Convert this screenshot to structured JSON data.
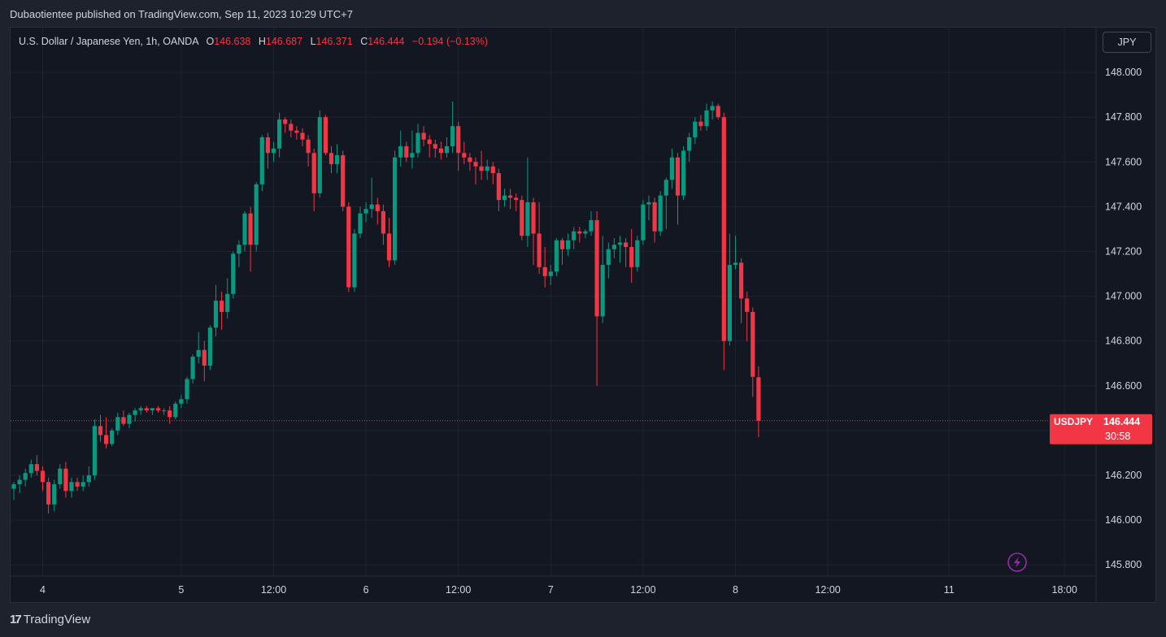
{
  "publication": {
    "text": "Dubaotientee published on TradingView.com, Sep 11, 2023 10:29 UTC+7"
  },
  "legend": {
    "symbol_line": "U.S. Dollar / Japanese Yen, 1h, OANDA",
    "open_label": "O",
    "open": "146.638",
    "high_label": "H",
    "high": "146.687",
    "low_label": "L",
    "low": "146.371",
    "close_label": "C",
    "close": "146.444",
    "change": "−0.194 (−0.13%)"
  },
  "currency_button": {
    "label": "JPY"
  },
  "price_tag": {
    "symbol": "USDJPY",
    "price": "146.444",
    "countdown": "30:58"
  },
  "footer": {
    "logo_text": "TradingView",
    "logo_mark": "17"
  },
  "icons": {
    "flash": "lightning-icon"
  },
  "colors": {
    "up": "#089981",
    "down": "#f23645",
    "background": "#131722",
    "grid": "#1e222d",
    "text": "#d1d4dc",
    "price_line": "#f23645",
    "flash": "#9c27b0"
  },
  "chart_data": {
    "type": "candlestick",
    "interval": "1h",
    "ylim": [
      145.75,
      148.2
    ],
    "y_ticks": [
      "145.800",
      "146.000",
      "146.200",
      "146.400",
      "146.600",
      "146.800",
      "147.000",
      "147.200",
      "147.400",
      "147.600",
      "147.800",
      "148.000"
    ],
    "x_ticks": [
      {
        "label": "4",
        "index": 5
      },
      {
        "label": "5",
        "index": 29
      },
      {
        "label": "12:00",
        "index": 45
      },
      {
        "label": "6",
        "index": 61
      },
      {
        "label": "12:00",
        "index": 77
      },
      {
        "label": "7",
        "index": 93
      },
      {
        "label": "12:00",
        "index": 109
      },
      {
        "label": "8",
        "index": 125
      },
      {
        "label": "12:00",
        "index": 141
      },
      {
        "label": "11",
        "index": 162
      },
      {
        "label": "18:00",
        "index": 182
      }
    ],
    "grid": true,
    "last_price": 146.444,
    "candles": [
      [
        146.14,
        146.17,
        146.09,
        146.16
      ],
      [
        146.16,
        146.2,
        146.12,
        146.18
      ],
      [
        146.18,
        146.23,
        146.15,
        146.21
      ],
      [
        146.21,
        146.27,
        146.19,
        146.25
      ],
      [
        146.25,
        146.29,
        146.2,
        146.22
      ],
      [
        146.22,
        146.24,
        146.13,
        146.17
      ],
      [
        146.17,
        146.19,
        146.03,
        146.07
      ],
      [
        146.07,
        146.18,
        146.04,
        146.16
      ],
      [
        146.16,
        146.25,
        146.14,
        146.23
      ],
      [
        146.23,
        146.26,
        146.1,
        146.13
      ],
      [
        146.13,
        146.19,
        146.1,
        146.17
      ],
      [
        146.17,
        146.19,
        146.13,
        146.15
      ],
      [
        146.15,
        146.2,
        146.13,
        146.17
      ],
      [
        146.17,
        146.24,
        146.15,
        146.2
      ],
      [
        146.2,
        146.45,
        146.18,
        146.42
      ],
      [
        146.42,
        146.47,
        146.35,
        146.38
      ],
      [
        146.38,
        146.46,
        146.32,
        146.34
      ],
      [
        146.34,
        146.41,
        146.33,
        146.4
      ],
      [
        146.4,
        146.48,
        146.38,
        146.46
      ],
      [
        146.46,
        146.49,
        146.42,
        146.43
      ],
      [
        146.43,
        146.48,
        146.41,
        146.47
      ],
      [
        146.47,
        146.5,
        146.44,
        146.49
      ],
      [
        146.49,
        146.51,
        146.47,
        146.5
      ],
      [
        146.5,
        146.51,
        146.48,
        146.49
      ],
      [
        146.49,
        146.5,
        146.47,
        146.5
      ],
      [
        146.5,
        146.51,
        146.48,
        146.49
      ],
      [
        146.49,
        146.5,
        146.47,
        146.49
      ],
      [
        146.49,
        146.51,
        146.43,
        146.46
      ],
      [
        146.46,
        146.53,
        146.45,
        146.52
      ],
      [
        146.52,
        146.56,
        146.5,
        146.54
      ],
      [
        146.54,
        146.64,
        146.52,
        146.63
      ],
      [
        146.63,
        146.74,
        146.61,
        146.73
      ],
      [
        146.73,
        146.84,
        146.7,
        146.76
      ],
      [
        146.76,
        146.8,
        146.62,
        146.69
      ],
      [
        146.69,
        146.87,
        146.67,
        146.86
      ],
      [
        146.86,
        147.05,
        146.82,
        146.98
      ],
      [
        146.98,
        147.02,
        146.85,
        146.93
      ],
      [
        146.93,
        147.08,
        146.9,
        147.01
      ],
      [
        147.01,
        147.2,
        146.99,
        147.19
      ],
      [
        147.19,
        147.25,
        147.13,
        147.23
      ],
      [
        147.23,
        147.38,
        147.2,
        147.37
      ],
      [
        147.37,
        147.4,
        147.11,
        147.23
      ],
      [
        147.23,
        147.51,
        147.2,
        147.5
      ],
      [
        147.5,
        147.72,
        147.47,
        147.71
      ],
      [
        147.71,
        147.73,
        147.57,
        147.64
      ],
      [
        147.64,
        147.69,
        147.6,
        147.66
      ],
      [
        147.66,
        147.82,
        147.62,
        147.79
      ],
      [
        147.79,
        147.8,
        147.73,
        147.77
      ],
      [
        147.77,
        147.79,
        147.71,
        147.74
      ],
      [
        147.74,
        147.76,
        147.7,
        147.73
      ],
      [
        147.73,
        147.75,
        147.67,
        147.7
      ],
      [
        147.7,
        147.72,
        147.58,
        147.64
      ],
      [
        147.64,
        147.66,
        147.38,
        147.46
      ],
      [
        147.46,
        147.83,
        147.44,
        147.8
      ],
      [
        147.8,
        147.81,
        147.63,
        147.64
      ],
      [
        147.64,
        147.67,
        147.55,
        147.59
      ],
      [
        147.59,
        147.68,
        147.55,
        147.63
      ],
      [
        147.63,
        147.65,
        147.38,
        147.4
      ],
      [
        147.4,
        147.42,
        147.02,
        147.04
      ],
      [
        147.04,
        147.3,
        147.02,
        147.28
      ],
      [
        147.28,
        147.4,
        147.26,
        147.37
      ],
      [
        147.37,
        147.42,
        147.33,
        147.39
      ],
      [
        147.39,
        147.53,
        147.35,
        147.41
      ],
      [
        147.41,
        147.44,
        147.32,
        147.38
      ],
      [
        147.38,
        147.41,
        147.23,
        147.28
      ],
      [
        147.28,
        147.35,
        147.13,
        147.16
      ],
      [
        147.16,
        147.65,
        147.14,
        147.62
      ],
      [
        147.62,
        147.74,
        147.58,
        147.67
      ],
      [
        147.67,
        147.69,
        147.6,
        147.62
      ],
      [
        147.62,
        147.74,
        147.57,
        147.64
      ],
      [
        147.64,
        147.77,
        147.62,
        147.73
      ],
      [
        147.73,
        147.76,
        147.67,
        147.7
      ],
      [
        147.7,
        147.72,
        147.62,
        147.68
      ],
      [
        147.68,
        147.7,
        147.62,
        147.66
      ],
      [
        147.66,
        147.69,
        147.61,
        147.64
      ],
      [
        147.64,
        147.71,
        147.62,
        147.67
      ],
      [
        147.67,
        147.87,
        147.64,
        147.76
      ],
      [
        147.76,
        147.78,
        147.56,
        147.64
      ],
      [
        147.64,
        147.69,
        147.59,
        147.62
      ],
      [
        147.62,
        147.64,
        147.56,
        147.6
      ],
      [
        147.6,
        147.62,
        147.5,
        147.58
      ],
      [
        147.58,
        147.65,
        147.52,
        147.56
      ],
      [
        147.56,
        147.61,
        147.52,
        147.58
      ],
      [
        147.58,
        147.6,
        147.5,
        147.55
      ],
      [
        147.55,
        147.57,
        147.38,
        147.43
      ],
      [
        147.43,
        147.48,
        147.4,
        147.45
      ],
      [
        147.45,
        147.48,
        147.39,
        147.44
      ],
      [
        147.44,
        147.46,
        147.38,
        147.43
      ],
      [
        147.43,
        147.45,
        147.25,
        147.27
      ],
      [
        147.27,
        147.62,
        147.22,
        147.42
      ],
      [
        147.42,
        147.44,
        147.14,
        147.28
      ],
      [
        147.28,
        147.42,
        147.1,
        147.13
      ],
      [
        147.13,
        147.22,
        147.04,
        147.09
      ],
      [
        147.09,
        147.14,
        147.05,
        147.11
      ],
      [
        147.11,
        147.26,
        147.09,
        147.25
      ],
      [
        147.25,
        147.26,
        147.14,
        147.21
      ],
      [
        147.21,
        147.28,
        147.18,
        147.25
      ],
      [
        147.25,
        147.31,
        147.21,
        147.29
      ],
      [
        147.29,
        147.31,
        147.24,
        147.28
      ],
      [
        147.28,
        147.3,
        147.26,
        147.29
      ],
      [
        147.29,
        147.38,
        147.27,
        147.34
      ],
      [
        147.34,
        147.38,
        146.6,
        146.91
      ],
      [
        146.91,
        147.27,
        146.88,
        147.14
      ],
      [
        147.14,
        147.24,
        147.08,
        147.21
      ],
      [
        147.21,
        147.26,
        147.17,
        147.23
      ],
      [
        147.23,
        147.27,
        147.15,
        147.24
      ],
      [
        147.24,
        147.26,
        147.13,
        147.22
      ],
      [
        147.22,
        147.3,
        147.06,
        147.13
      ],
      [
        147.13,
        147.27,
        147.11,
        147.25
      ],
      [
        147.25,
        147.43,
        147.23,
        147.41
      ],
      [
        147.41,
        147.45,
        147.34,
        147.42
      ],
      [
        147.42,
        147.44,
        147.24,
        147.29
      ],
      [
        147.29,
        147.47,
        147.27,
        147.45
      ],
      [
        147.45,
        147.53,
        147.3,
        147.52
      ],
      [
        147.52,
        147.66,
        147.48,
        147.62
      ],
      [
        147.62,
        147.64,
        147.32,
        147.45
      ],
      [
        147.45,
        147.67,
        147.43,
        147.65
      ],
      [
        147.65,
        147.73,
        147.6,
        147.71
      ],
      [
        147.71,
        147.8,
        147.68,
        147.78
      ],
      [
        147.78,
        147.81,
        147.74,
        147.76
      ],
      [
        147.76,
        147.86,
        147.74,
        147.83
      ],
      [
        147.83,
        147.87,
        147.79,
        147.85
      ],
      [
        147.85,
        147.86,
        147.79,
        147.8
      ],
      [
        147.8,
        147.82,
        146.67,
        146.8
      ],
      [
        146.8,
        147.28,
        146.78,
        147.14
      ],
      [
        147.14,
        147.27,
        147.12,
        147.15
      ],
      [
        147.15,
        147.17,
        146.88,
        146.99
      ],
      [
        146.99,
        147.02,
        146.8,
        146.93
      ],
      [
        146.93,
        146.95,
        146.55,
        146.64
      ],
      [
        146.638,
        146.687,
        146.371,
        146.444
      ]
    ]
  }
}
